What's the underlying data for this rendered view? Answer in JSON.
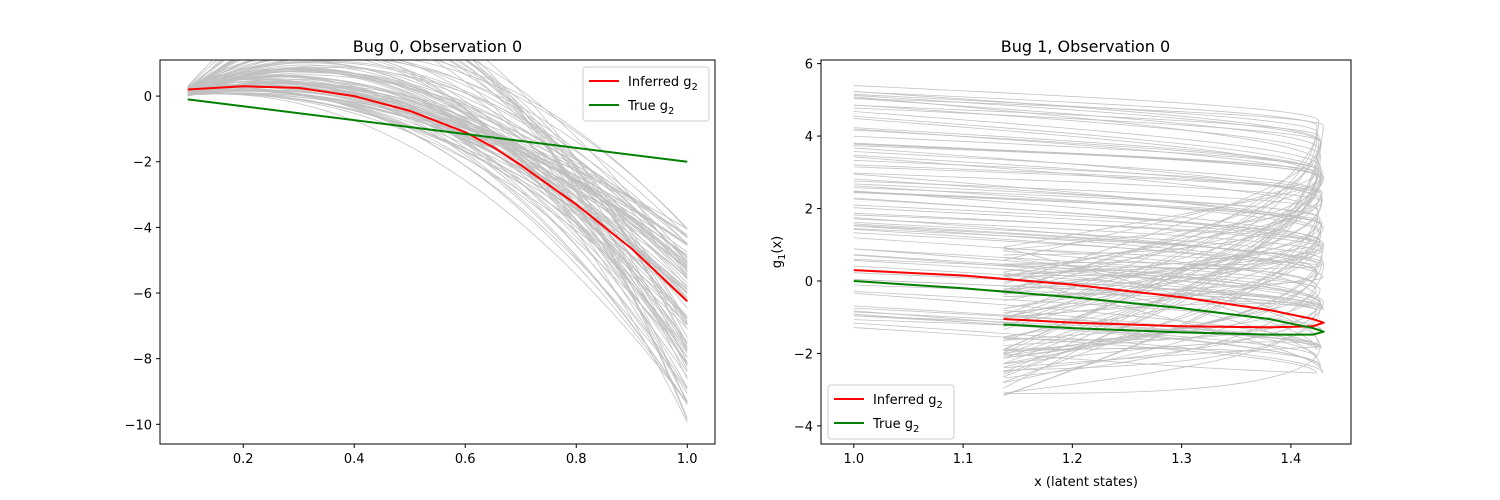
{
  "chart_data": [
    {
      "type": "line",
      "title": "Bug 0, Observation 0",
      "xlabel": "",
      "ylabel": "",
      "xlim": [
        0.05,
        1.05
      ],
      "ylim": [
        -10.6,
        1.1
      ],
      "xticks": [
        0.2,
        0.4,
        0.6,
        0.8,
        1.0
      ],
      "xtick_labels": [
        "0.2",
        "0.4",
        "0.6",
        "0.8",
        "1.0"
      ],
      "yticks": [
        0,
        -2,
        -4,
        -6,
        -8,
        -10
      ],
      "ytick_labels": [
        "0",
        "−2",
        "−4",
        "−6",
        "−8",
        "−10"
      ],
      "legend_position": "upper right",
      "series": [
        {
          "name": "Inferred g₂",
          "legend_main": "Inferred g",
          "legend_sub": "2",
          "color": "#ff0000",
          "x": [
            0.1,
            0.2,
            0.3,
            0.4,
            0.5,
            0.6,
            0.65,
            0.7,
            0.8,
            0.9,
            1.0
          ],
          "y": [
            0.2,
            0.3,
            0.25,
            0.0,
            -0.45,
            -1.1,
            -1.55,
            -2.1,
            -3.3,
            -4.65,
            -6.25
          ]
        },
        {
          "name": "True g₂",
          "legend_main": "True g",
          "legend_sub": "2",
          "color": "#008000",
          "x": [
            0.1,
            1.0
          ],
          "y": [
            -0.1,
            -2.0
          ]
        }
      ],
      "samples": {
        "color": "#c0c0c0",
        "count": 100,
        "x_range": [
          0.1,
          1.0
        ],
        "start_y_range": [
          0.0,
          0.3
        ],
        "peak_x_range": [
          0.15,
          0.4
        ],
        "end_y_range": [
          -10.0,
          -4.0
        ]
      }
    },
    {
      "type": "line",
      "title": "Bug 1, Observation 0",
      "xlabel": "x (latent states)",
      "ylabel_main": "g",
      "ylabel_sub": "1",
      "ylabel_tail": "(x)",
      "xlim": [
        0.97,
        1.455
      ],
      "ylim": [
        -4.5,
        6.1
      ],
      "xticks": [
        1.0,
        1.1,
        1.2,
        1.3,
        1.4
      ],
      "xtick_labels": [
        "1.0",
        "1.1",
        "1.2",
        "1.3",
        "1.4"
      ],
      "yticks": [
        6,
        4,
        2,
        0,
        -2,
        -4
      ],
      "ytick_labels": [
        "6",
        "4",
        "2",
        "0",
        "−2",
        "−4"
      ],
      "legend_position": "lower left",
      "series": [
        {
          "name": "Inferred g₂",
          "legend_main": "Inferred g",
          "legend_sub": "2",
          "color": "#ff0000",
          "x": [
            1.0,
            1.1,
            1.2,
            1.3,
            1.38,
            1.42,
            1.43,
            1.42,
            1.38,
            1.3,
            1.2,
            1.137
          ],
          "y": [
            0.3,
            0.15,
            -0.1,
            -0.45,
            -0.8,
            -1.05,
            -1.15,
            -1.25,
            -1.28,
            -1.25,
            -1.15,
            -1.05
          ]
        },
        {
          "name": "True g₂",
          "legend_main": "True g",
          "legend_sub": "2",
          "color": "#008000",
          "x": [
            1.0,
            1.1,
            1.2,
            1.3,
            1.38,
            1.42,
            1.43,
            1.42,
            1.38,
            1.3,
            1.2,
            1.137
          ],
          "y": [
            0.0,
            -0.2,
            -0.45,
            -0.75,
            -1.05,
            -1.3,
            -1.4,
            -1.48,
            -1.48,
            -1.42,
            -1.3,
            -1.2
          ]
        }
      ],
      "samples": {
        "color": "#c0c0c0",
        "count": 80,
        "x_range": [
          1.0,
          1.43
        ],
        "return_x": 1.137,
        "start_y_range": [
          -1.3,
          5.4
        ]
      }
    }
  ]
}
